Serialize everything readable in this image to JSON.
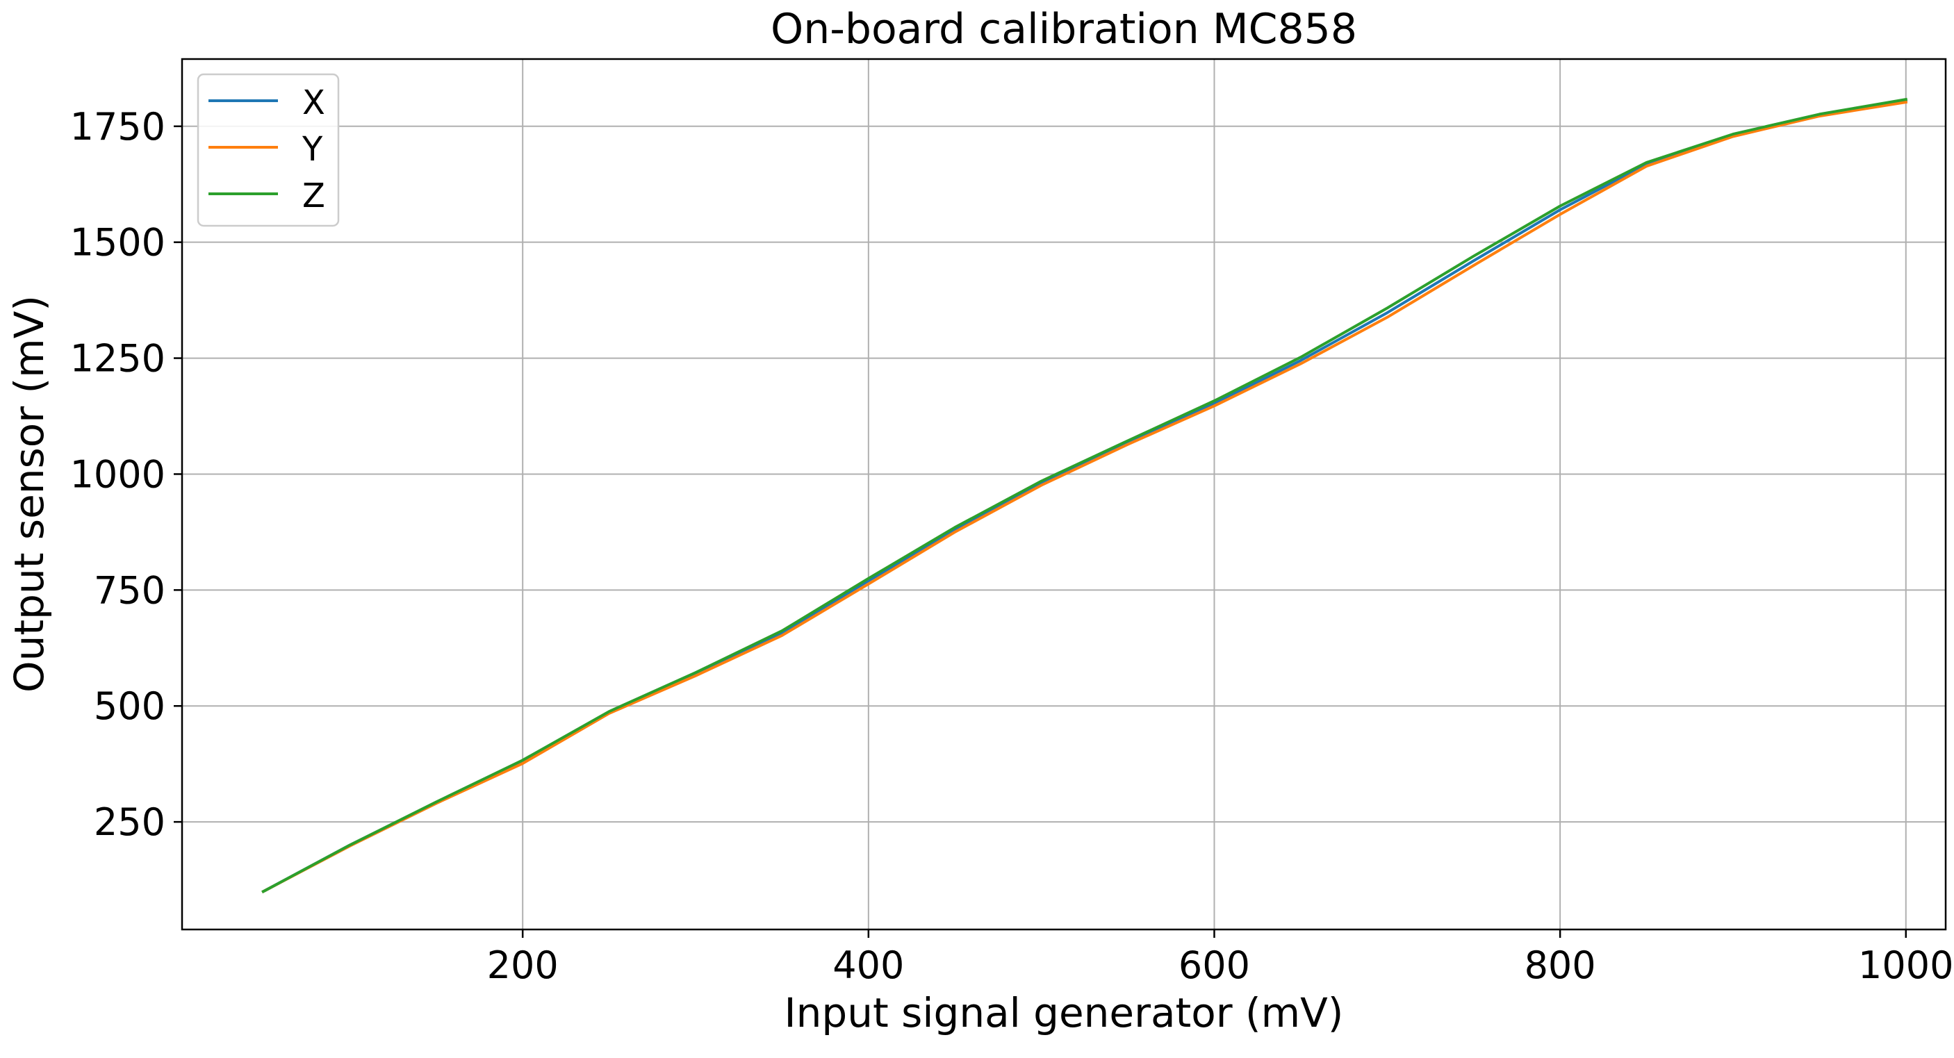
{
  "chart_data": {
    "type": "line",
    "title": "On-board calibration MC858",
    "xlabel": "Input signal generator (mV)",
    "ylabel": "Output sensor (mV)",
    "xlim": [
      3,
      1023
    ],
    "ylim": [
      18,
      1895
    ],
    "xticks": [
      200,
      400,
      600,
      800,
      1000
    ],
    "yticks": [
      250,
      500,
      750,
      1000,
      1250,
      1500,
      1750
    ],
    "grid": true,
    "legend_position": "upper-left",
    "x": [
      50,
      100,
      150,
      200,
      250,
      300,
      350,
      400,
      450,
      500,
      550,
      600,
      650,
      700,
      750,
      800,
      850,
      900,
      950,
      1000
    ],
    "series": [
      {
        "name": "X",
        "color": "#1f77b4",
        "values": [
          100,
          200,
          292,
          380,
          486,
          568,
          658,
          770,
          880,
          980,
          1068,
          1152,
          1245,
          1348,
          1460,
          1570,
          1668,
          1730,
          1775,
          1805
        ]
      },
      {
        "name": "Y",
        "color": "#ff7f0e",
        "values": [
          100,
          198,
          290,
          376,
          484,
          565,
          652,
          763,
          875,
          976,
          1064,
          1147,
          1238,
          1338,
          1450,
          1560,
          1664,
          1728,
          1772,
          1802
        ]
      },
      {
        "name": "Z",
        "color": "#2ca02c",
        "values": [
          100,
          200,
          293,
          383,
          488,
          572,
          662,
          775,
          885,
          985,
          1072,
          1158,
          1252,
          1358,
          1470,
          1578,
          1672,
          1733,
          1776,
          1808
        ]
      }
    ]
  }
}
